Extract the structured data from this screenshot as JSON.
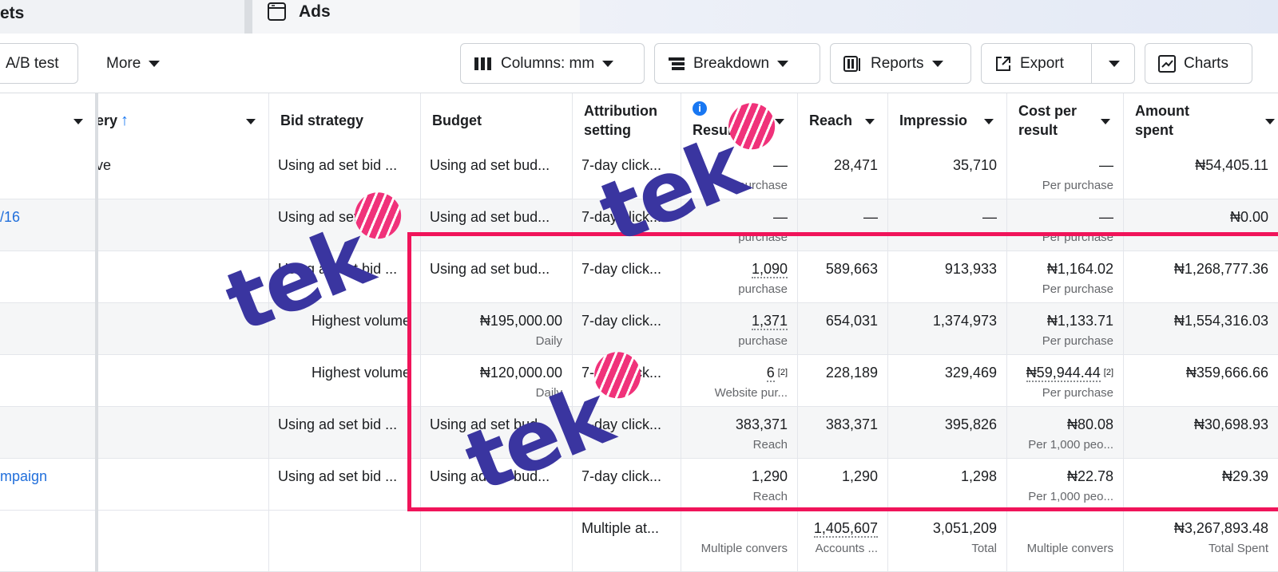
{
  "tabs": [
    "ets",
    "Ads"
  ],
  "toolbar": {
    "ab_test": "A/B test",
    "more": "More",
    "columns": "Columns: mm",
    "breakdown": "Breakdown",
    "reports": "Reports",
    "export": "Export",
    "charts": "Charts"
  },
  "table": {
    "headers": [
      null,
      "ery",
      "Bid strategy",
      "Budget",
      "Attribution setting",
      "Results",
      "Reach",
      "Impressio",
      "Cost per result",
      "Amount spent"
    ],
    "rows": [
      [
        null,
        "ve",
        "Using ad set bid ...",
        "Using ad set bud...",
        "7-day click...",
        {
          "main": "—",
          "sub": "purchase"
        },
        "28,471",
        "35,710",
        {
          "main": "—",
          "sub": "Per purchase"
        },
        "₦54,405.11"
      ],
      [
        "/16",
        null,
        "Using ad set bid ...",
        "Using ad set bud...",
        "7-day click...",
        {
          "main": "—",
          "sub": "purchase"
        },
        "—",
        "—",
        {
          "main": "—",
          "sub": "Per purchase"
        },
        "₦0.00"
      ],
      [
        null,
        null,
        "Using ad set bid ...",
        "Using ad set bud...",
        "7-day click...",
        {
          "main": "1,090",
          "sub": "purchase"
        },
        "589,663",
        "913,933",
        {
          "main": "₦1,164.02",
          "sub": "Per purchase"
        },
        "₦1,268,777.36"
      ],
      [
        null,
        null,
        "Highest volume",
        {
          "main": "₦195,000.00",
          "sub": "Daily"
        },
        "7-day click...",
        {
          "main": "1,371",
          "sub": "purchase"
        },
        "654,031",
        "1,374,973",
        {
          "main": "₦1,133.71",
          "sub": "Per purchase"
        },
        "₦1,554,316.03"
      ],
      [
        null,
        null,
        "Highest volume",
        {
          "main": "₦120,000.00",
          "sub": "Daily"
        },
        "7-day click...",
        {
          "main": "6",
          "note": "[2]",
          "sub": "Website pur..."
        },
        "228,189",
        "329,469",
        {
          "main": "₦59,944.44",
          "note": "[2]",
          "sub": "Per purchase"
        },
        "₦359,666.66"
      ],
      [
        null,
        null,
        "Using ad set bid ...",
        "Using ad set bud...",
        "7-day click...",
        {
          "main": "383,371",
          "sub": "Reach"
        },
        "383,371",
        "395,826",
        {
          "main": "₦80.08",
          "sub": "Per 1,000 peo..."
        },
        "₦30,698.93"
      ],
      [
        "mpaign",
        null,
        "Using ad set bid ...",
        "Using ad set bud...",
        "7-day click...",
        {
          "main": "1,290",
          "sub": "Reach"
        },
        "1,290",
        "1,298",
        {
          "main": "₦22.78",
          "sub": "Per 1,000 peo..."
        },
        "₦29.39"
      ]
    ],
    "total": [
      null,
      null,
      null,
      null,
      "Multiple at...",
      {
        "sub": "Multiple convers"
      },
      {
        "main": "1,405,607",
        "sub": "Accounts ..."
      },
      {
        "main": "3,051,209",
        "sub": "Total"
      },
      {
        "sub": "Multiple convers"
      },
      {
        "main": "₦3,267,893.48",
        "sub": "Total Spent"
      }
    ]
  },
  "watermark": "tek"
}
